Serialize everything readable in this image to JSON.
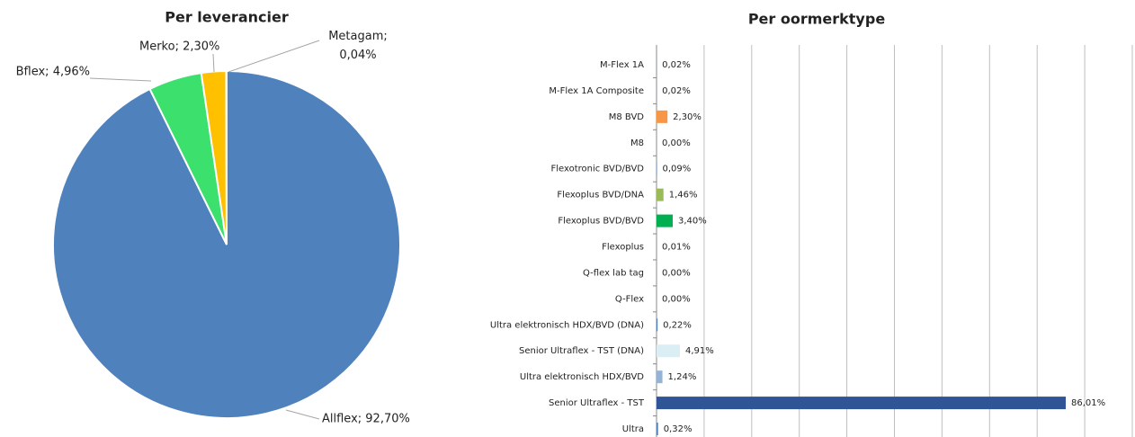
{
  "chart_data": [
    {
      "type": "pie",
      "title": "Per leverancier",
      "values": [
        92.7,
        4.96,
        2.3,
        0.04
      ],
      "value_labels": [
        "Allflex; 92,70%",
        "Bflex; 4,96%",
        "Merko; 2,30%",
        "Metagam; 0,04%"
      ],
      "colors": [
        "#4f81bd",
        "#3ce06c",
        "#ffc000",
        "#a5a5a5"
      ]
    },
    {
      "type": "hbar",
      "title": "Per oormerktype",
      "categories": [
        "M-Flex 1A",
        "M-Flex 1A Composite",
        "M8 BVD",
        "M8",
        "Flexotronic BVD/BVD",
        "Flexoplus BVD/DNA",
        "Flexoplus BVD/BVD",
        "Flexoplus",
        "Q-flex lab tag",
        "Q-Flex",
        "Ultra elektronisch HDX/BVD (DNA)",
        "Senior Ultraflex - TST (DNA)",
        "Ultra elektronisch HDX/BVD",
        "Senior Ultraflex - TST",
        "Ultra"
      ],
      "values": [
        0.02,
        0.02,
        2.3,
        0.0,
        0.09,
        1.46,
        3.4,
        0.01,
        0.0,
        0.0,
        0.22,
        4.91,
        1.24,
        86.01,
        0.32
      ],
      "value_labels": [
        "0,02%",
        "0,02%",
        "2,30%",
        "0,00%",
        "0,09%",
        "1,46%",
        "3,40%",
        "0,01%",
        "0,00%",
        "0,00%",
        "0,22%",
        "4,91%",
        "1,24%",
        "86,01%",
        "0,32%"
      ],
      "colors": [
        "#4f81bd",
        "#4f81bd",
        "#f79646",
        "#4f81bd",
        "#4f81bd",
        "#9bbb59",
        "#00b050",
        "#4f81bd",
        "#4f81bd",
        "#4f81bd",
        "#4f81bd",
        "#dbeef4",
        "#95b3d7",
        "#2f5597",
        "#4f81bd"
      ],
      "xlim": [
        0,
        100
      ],
      "xticks": [
        0,
        10,
        20,
        30,
        40,
        50,
        60,
        70,
        80,
        90,
        100
      ],
      "grid": true
    }
  ]
}
